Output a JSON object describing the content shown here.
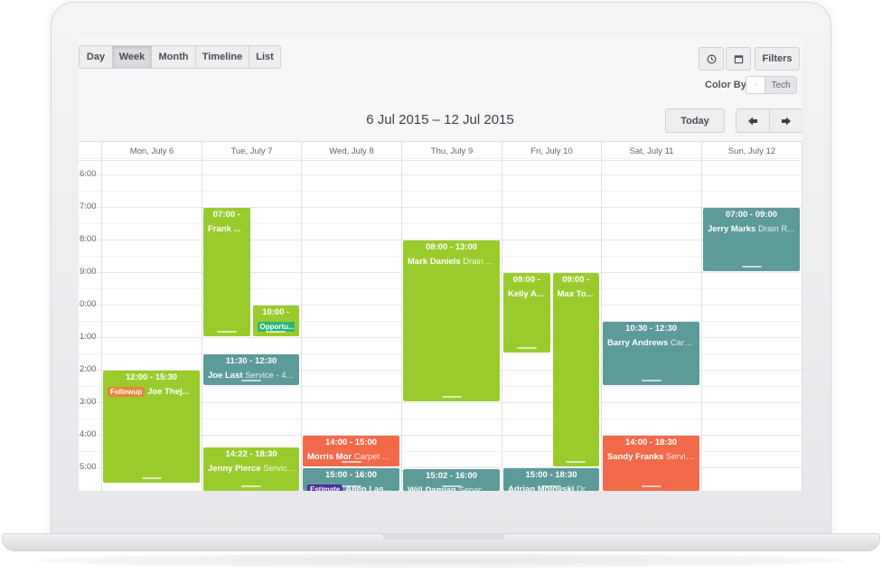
{
  "toolbar": {
    "views": [
      "Day",
      "Week",
      "Month",
      "Timeline",
      "List"
    ],
    "active_view": "Week",
    "filters_label": "Filters",
    "clock_icon": "clock-icon",
    "calendar_icon": "calendar-icon",
    "color_by_label": "Color By:",
    "color_by_options": [
      "Tech"
    ],
    "today_label": "Today",
    "prev_icon": "arrow-left-icon",
    "next_icon": "arrow-right-icon"
  },
  "range_title": "6 Jul 2015 – 12 Jul 2015",
  "days": [
    "Mon, July 6",
    "Tue, July 7",
    "Wed, July 8",
    "Thu, July 9",
    "Fri, July 10",
    "Sat, July 11",
    "Sun, July 12"
  ],
  "hours": [
    "6:00",
    "7:00",
    "8:00",
    "9:00",
    "0:00",
    "1:00",
    "2:00",
    "3:00",
    "4:00",
    "5:00"
  ],
  "events": [
    {
      "time": "07:00 -",
      "title": "Frank ...",
      "sub": "",
      "tag": "",
      "day": 1,
      "col": 0,
      "cols": 2,
      "start": 7.0,
      "end": 11.0,
      "color": "#9acb2d"
    },
    {
      "time": "10:00 -",
      "title": "",
      "sub": "",
      "tag": "Opportu...",
      "tag_color": "#2bb673",
      "day": 1,
      "col": 1,
      "cols": 2,
      "start": 10.0,
      "end": 11.0,
      "color": "#9acb2d"
    },
    {
      "time": "11:30 - 12:30",
      "title": "Joe Last",
      "sub": "Service - 4...",
      "tag": "",
      "day": 1,
      "col": 0,
      "cols": 1,
      "start": 11.5,
      "end": 12.5,
      "color": "#5d9a9a"
    },
    {
      "time": "14:22 - 18:30",
      "title": "Jenny Pierce",
      "sub": "Servic...",
      "tag": "",
      "day": 1,
      "col": 0,
      "cols": 1,
      "start": 14.37,
      "end": 18.5,
      "color": "#9acb2d"
    },
    {
      "time": "12:00 - 15:30",
      "title": "Joe Thej...",
      "sub": "",
      "tag": "Followup",
      "tag_color": "#e8843a",
      "day": 0,
      "col": 0,
      "cols": 1,
      "start": 12.0,
      "end": 15.5,
      "color": "#9acb2d"
    },
    {
      "time": "14:00 - 15:00",
      "title": "Morris Mor",
      "sub": "Carpet ...",
      "tag": "",
      "day": 2,
      "col": 0,
      "cols": 1,
      "start": 14.0,
      "end": 15.0,
      "color": "#f36a4b"
    },
    {
      "time": "15:00 - 16:00",
      "title": "Allen Las...",
      "sub": "",
      "tag": "Estimate",
      "tag_color": "#4b2a9e",
      "day": 2,
      "col": 0,
      "cols": 1,
      "start": 15.0,
      "end": 16.0,
      "color": "#5d9a9a"
    },
    {
      "time": "08:00 - 13:00",
      "title": "Mark Daniels",
      "sub": "Drain ...",
      "tag": "",
      "day": 3,
      "col": 0,
      "cols": 1,
      "start": 8.0,
      "end": 13.0,
      "color": "#9acb2d"
    },
    {
      "time": "15:02 - 16:00",
      "title": "Will Damian",
      "sub": "Service ...",
      "tag": "",
      "day": 3,
      "col": 0,
      "cols": 1,
      "start": 15.03,
      "end": 16.0,
      "color": "#5d9a9a"
    },
    {
      "time": "09:00 -",
      "title": "Kelly A...",
      "sub": "",
      "tag": "",
      "day": 4,
      "col": 0,
      "cols": 2,
      "start": 9.0,
      "end": 11.5,
      "color": "#9acb2d"
    },
    {
      "time": "09:00 -",
      "title": "Max To...",
      "sub": "",
      "tag": "",
      "day": 4,
      "col": 1,
      "cols": 2,
      "start": 9.0,
      "end": 15.0,
      "color": "#9acb2d"
    },
    {
      "time": "15:00 - 18:30",
      "title": "Adrian Molovski",
      "sub": "Dr...",
      "tag": "",
      "day": 4,
      "col": 0,
      "cols": 1,
      "start": 15.0,
      "end": 18.5,
      "color": "#5d9a9a"
    },
    {
      "time": "10:30 - 12:30",
      "title": "Barry Andrews",
      "sub": "Carp...",
      "tag": "",
      "day": 5,
      "col": 0,
      "cols": 1,
      "start": 10.5,
      "end": 12.5,
      "color": "#5d9a9a"
    },
    {
      "time": "14:00 - 18:30",
      "title": "Sandy Franks",
      "sub": "Servic...",
      "tag": "",
      "day": 5,
      "col": 0,
      "cols": 1,
      "start": 14.0,
      "end": 18.5,
      "color": "#f36a4b"
    },
    {
      "time": "07:00 - 09:00",
      "title": "Jerry Marks",
      "sub": "Drain R...",
      "tag": "",
      "day": 6,
      "col": 0,
      "cols": 1,
      "start": 7.0,
      "end": 9.0,
      "color": "#5d9a9a"
    }
  ]
}
